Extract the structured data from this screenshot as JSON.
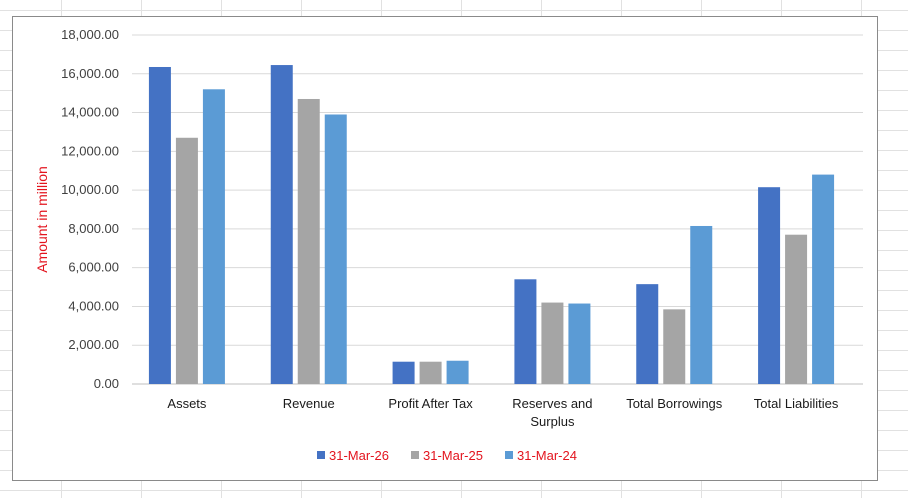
{
  "chart_data": {
    "type": "bar",
    "title": "",
    "xlabel": "",
    "ylabel": "Amount in million",
    "ylim": [
      0,
      18000
    ],
    "ytick_step": 2000,
    "ytick_labels": [
      "0.00",
      "2,000.00",
      "4,000.00",
      "6,000.00",
      "8,000.00",
      "10,000.00",
      "12,000.00",
      "14,000.00",
      "16,000.00",
      "18,000.00"
    ],
    "categories": [
      [
        "Assets"
      ],
      [
        "Revenue"
      ],
      [
        "Profit After Tax"
      ],
      [
        "Reserves and",
        "Surplus"
      ],
      [
        "Total Borrowings"
      ],
      [
        "Total Liabilities"
      ]
    ],
    "series": [
      {
        "name": "31-Mar-26",
        "color": "#4472c4",
        "values": [
          16350,
          16450,
          1150,
          5400,
          5150,
          10150
        ]
      },
      {
        "name": "31-Mar-25",
        "color": "#a5a5a5",
        "values": [
          12700,
          14700,
          1150,
          4200,
          3850,
          7700
        ]
      },
      {
        "name": "31-Mar-24",
        "color": "#5b9bd5",
        "values": [
          15200,
          13900,
          1200,
          4150,
          8150,
          10800
        ]
      }
    ],
    "grid": true,
    "legend_position": "bottom"
  }
}
